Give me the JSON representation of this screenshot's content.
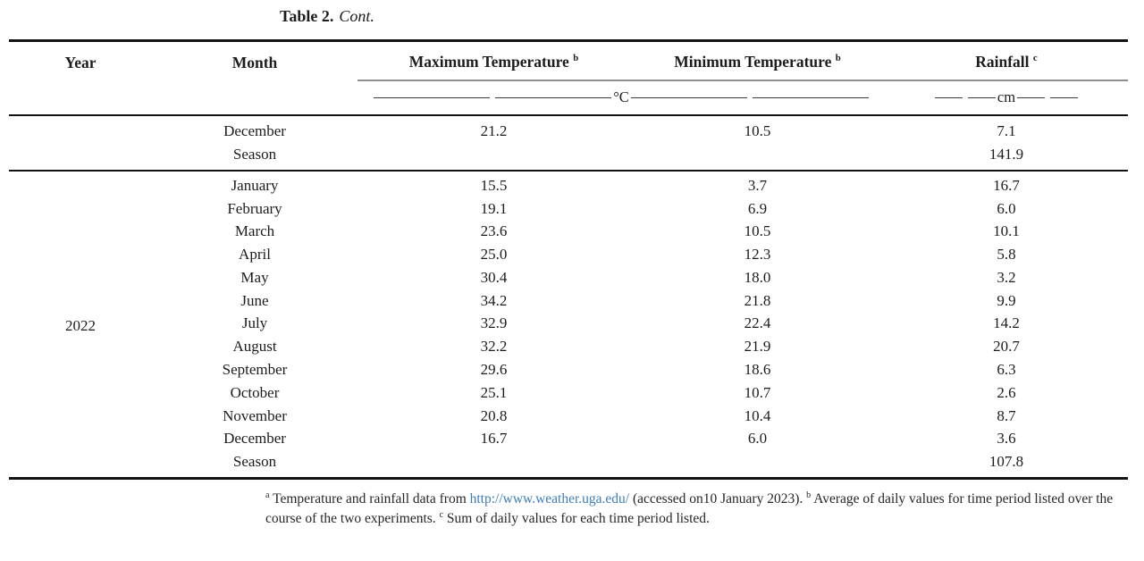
{
  "caption": {
    "label": "Table 2.",
    "cont": "Cont."
  },
  "table": {
    "columns": [
      "Year",
      "Month",
      "Maximum Temperature",
      "Minimum Temperature",
      "Rainfall"
    ],
    "column_superscripts": {
      "max": "b",
      "min": "b",
      "rain": "c"
    },
    "units": {
      "temperature": "°C",
      "rainfall": "cm"
    },
    "sections": [
      {
        "year": "",
        "rows": [
          {
            "month": "December",
            "max": "21.2",
            "min": "10.5",
            "rain": "7.1"
          },
          {
            "month": "Season",
            "max": "",
            "min": "",
            "rain": "141.9"
          }
        ]
      },
      {
        "year": "2022",
        "rows": [
          {
            "month": "January",
            "max": "15.5",
            "min": "3.7",
            "rain": "16.7"
          },
          {
            "month": "February",
            "max": "19.1",
            "min": "6.9",
            "rain": "6.0"
          },
          {
            "month": "March",
            "max": "23.6",
            "min": "10.5",
            "rain": "10.1"
          },
          {
            "month": "April",
            "max": "25.0",
            "min": "12.3",
            "rain": "5.8"
          },
          {
            "month": "May",
            "max": "30.4",
            "min": "18.0",
            "rain": "3.2"
          },
          {
            "month": "June",
            "max": "34.2",
            "min": "21.8",
            "rain": "9.9"
          },
          {
            "month": "July",
            "max": "32.9",
            "min": "22.4",
            "rain": "14.2"
          },
          {
            "month": "August",
            "max": "32.2",
            "min": "21.9",
            "rain": "20.7"
          },
          {
            "month": "September",
            "max": "29.6",
            "min": "18.6",
            "rain": "6.3"
          },
          {
            "month": "October",
            "max": "25.1",
            "min": "10.7",
            "rain": "2.6"
          },
          {
            "month": "November",
            "max": "20.8",
            "min": "10.4",
            "rain": "8.7"
          },
          {
            "month": "December",
            "max": "16.7",
            "min": "6.0",
            "rain": "3.6"
          },
          {
            "month": "Season",
            "max": "",
            "min": "",
            "rain": "107.8"
          }
        ]
      }
    ]
  },
  "footnote": {
    "sup_a": "a",
    "part1": "Temperature and rainfall data from",
    "link": "http://www.weather.uga.edu/",
    "part2": "(accessed on10 January 2023).",
    "sup_b": "b",
    "part3": "Average of daily values for time period listed over the course of the two experiments.",
    "sup_c": "c",
    "part4": "Sum of daily values for each time period listed."
  },
  "colors": {
    "link": "#3c7dbb",
    "rule_gray": "#8f8f8f",
    "rule_black": "#121212"
  }
}
